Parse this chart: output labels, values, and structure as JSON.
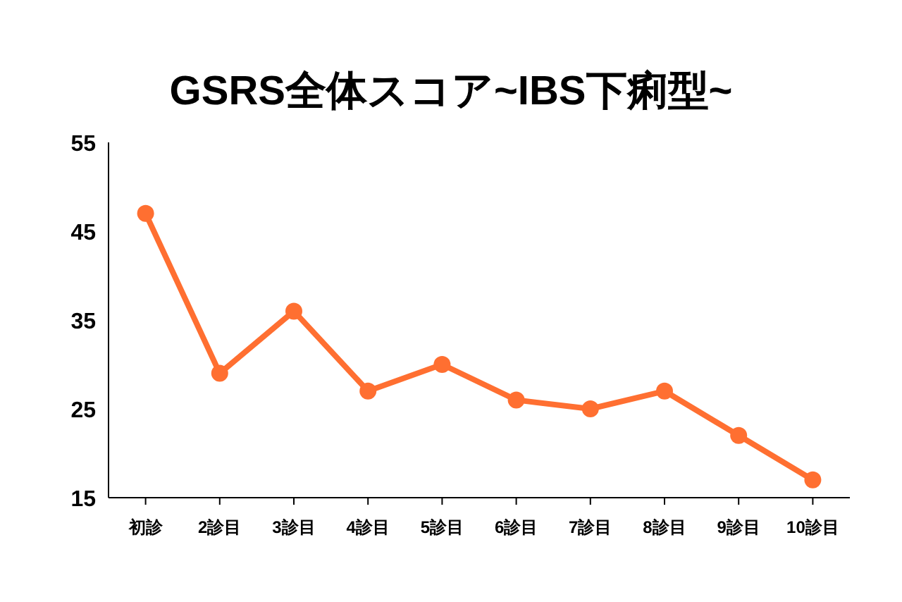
{
  "chart_data": {
    "type": "line",
    "title": "GSRS全体スコア~IBS下痢型~",
    "categories": [
      "初診",
      "2診目",
      "3診目",
      "4診目",
      "5診目",
      "6診目",
      "7診目",
      "8診目",
      "9診目",
      "10診目"
    ],
    "series": [
      {
        "color": "#ff6f31",
        "values": [
          47,
          29,
          36,
          27,
          30,
          26,
          25,
          27,
          22,
          17
        ]
      }
    ],
    "ylim": [
      15,
      55
    ],
    "yticks": [
      15,
      25,
      35,
      45,
      55
    ],
    "grid": false,
    "marker": "circle",
    "line_style": "solid"
  }
}
